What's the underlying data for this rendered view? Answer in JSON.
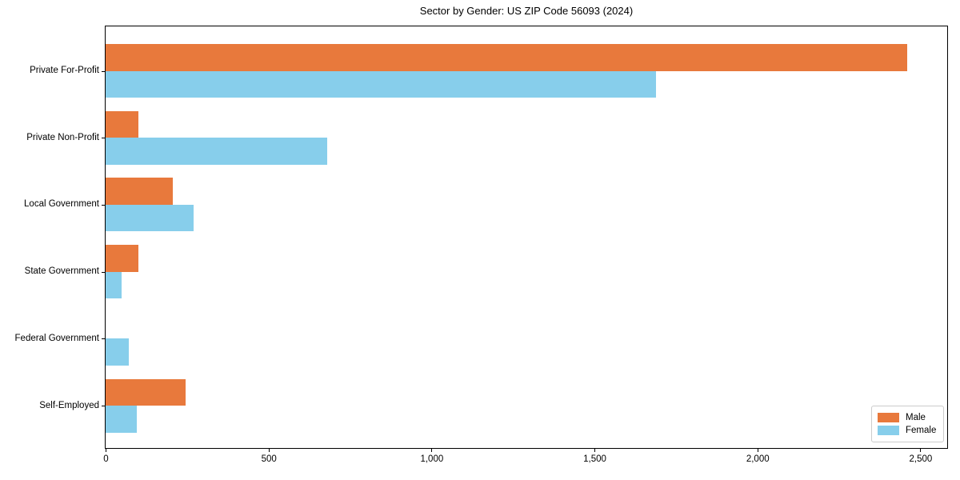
{
  "figure": {
    "background": "#ffffff"
  },
  "chart_data": {
    "type": "bar",
    "orientation": "horizontal",
    "title": "Sector by Gender: US ZIP Code 56093 (2024)",
    "categories": [
      "Private For-Profit",
      "Private Non-Profit",
      "Local Government",
      "State Government",
      "Federal Government",
      "Self-Employed"
    ],
    "series": [
      {
        "name": "Male",
        "color": "#E8793C",
        "values": [
          2460,
          100,
          205,
          100,
          0,
          245
        ]
      },
      {
        "name": "Female",
        "color": "#87CEEB",
        "values": [
          1690,
          680,
          270,
          50,
          70,
          95
        ]
      }
    ],
    "xlabel": "",
    "ylabel": "",
    "xlim": [
      0,
      2580
    ],
    "x_ticks": [
      0,
      500,
      1000,
      1500,
      2000,
      2500
    ],
    "x_tick_labels": [
      "0",
      "500",
      "1,000",
      "1,500",
      "2,000",
      "2,500"
    ],
    "grid": false,
    "legend": {
      "position": "lower right",
      "entries": [
        "Male",
        "Female"
      ]
    }
  }
}
